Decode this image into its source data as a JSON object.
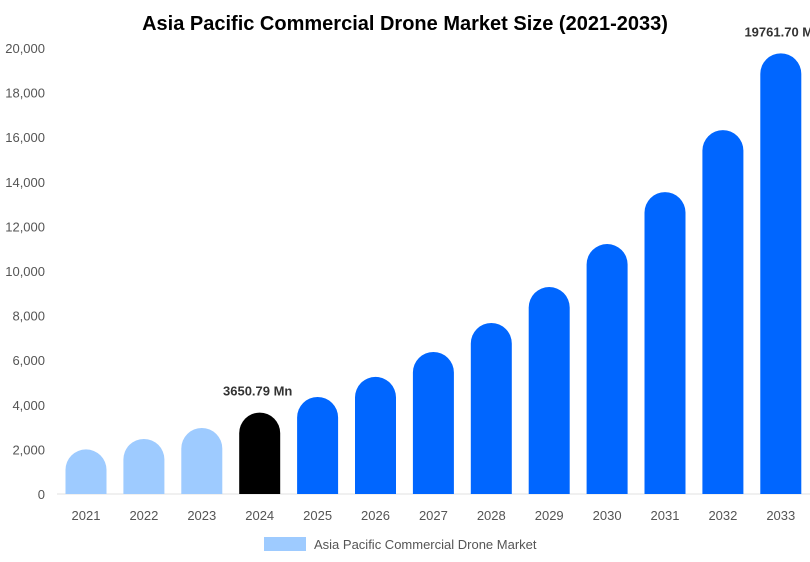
{
  "chart_data": {
    "type": "bar",
    "title": "Asia Pacific Commercial Drone Market Size (2021-2033)",
    "xlabel": "",
    "ylabel": "",
    "ylim": [
      0,
      20000
    ],
    "yticks": [
      "0",
      "2,000",
      "4,000",
      "6,000",
      "8,000",
      "10,000",
      "12,000",
      "14,000",
      "16,000",
      "18,000",
      "20,000"
    ],
    "ytick_values": [
      0,
      2000,
      4000,
      6000,
      8000,
      10000,
      12000,
      14000,
      16000,
      18000,
      20000
    ],
    "grid": false,
    "legend_position": "bottom-center",
    "categories": [
      "2021",
      "2022",
      "2023",
      "2024",
      "2025",
      "2026",
      "2027",
      "2028",
      "2029",
      "2030",
      "2031",
      "2032",
      "2033"
    ],
    "series": [
      {
        "name": "Asia Pacific Commercial Drone Market",
        "values": [
          2000,
          2470,
          2960,
          3650.79,
          4350,
          5250,
          6370,
          7670,
          9280,
          11210,
          13540,
          16320,
          19761.7
        ]
      }
    ],
    "bar_colors": [
      "#9ecbff",
      "#9ecbff",
      "#9ecbff",
      "#000000",
      "#0066ff",
      "#0066ff",
      "#0066ff",
      "#0066ff",
      "#0066ff",
      "#0066ff",
      "#0066ff",
      "#0066ff",
      "#0066ff"
    ],
    "legend_color": "#9ecbff",
    "annotations": [
      {
        "category": "2024",
        "text": "3650.79 Mn"
      },
      {
        "category": "2033",
        "text": "19761.70 M"
      }
    ]
  }
}
